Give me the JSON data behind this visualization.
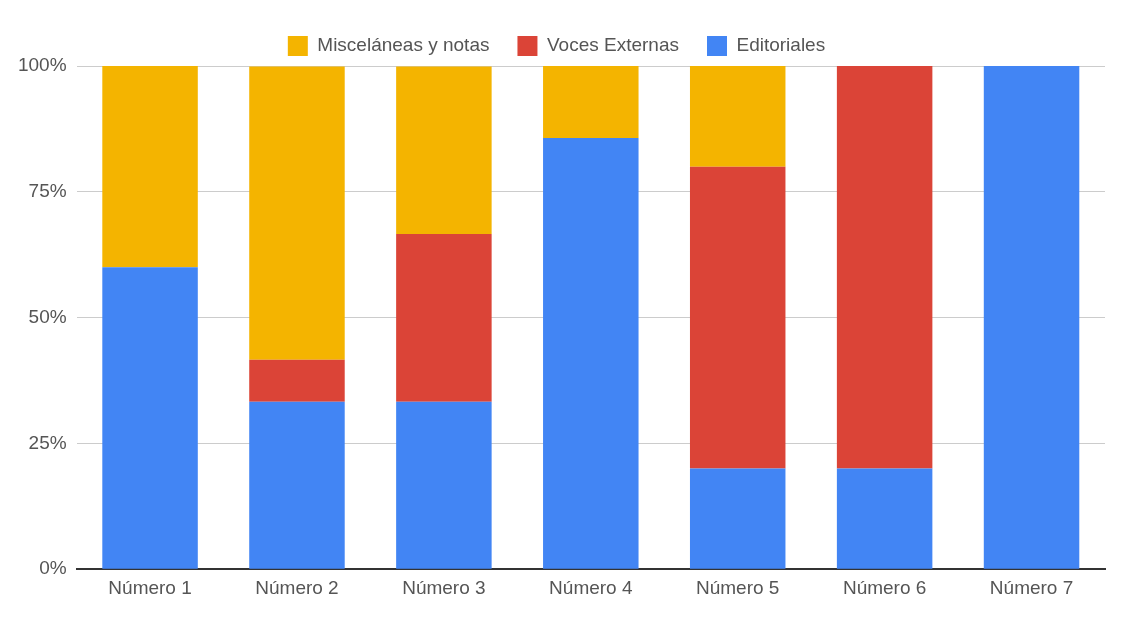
{
  "chart_data": {
    "type": "bar",
    "stacked": true,
    "categories": [
      "Número 1",
      "Número 2",
      "Número 3",
      "Número 4",
      "Número 5",
      "Número 6",
      "Número 7"
    ],
    "series": [
      {
        "name": "Editoriales",
        "color": "#4285f4",
        "values": [
          60,
          33.3,
          33.3,
          85.7,
          20,
          20,
          100
        ]
      },
      {
        "name": "Voces Externas",
        "color": "#db4437",
        "values": [
          0,
          8.3,
          33.3,
          0,
          60,
          80,
          0
        ]
      },
      {
        "name": "Misceláneas y notas",
        "color": "#f4b400",
        "values": [
          40,
          58.3,
          33.3,
          14.3,
          20,
          0,
          0
        ]
      }
    ],
    "ylim": [
      0,
      100
    ],
    "yticks": [
      {
        "value": 0,
        "label": "0%"
      },
      {
        "value": 25,
        "label": "25%"
      },
      {
        "value": 50,
        "label": "50%"
      },
      {
        "value": 75,
        "label": "75%"
      },
      {
        "value": 100,
        "label": "100%"
      }
    ],
    "grid": "y",
    "legend": "top"
  }
}
